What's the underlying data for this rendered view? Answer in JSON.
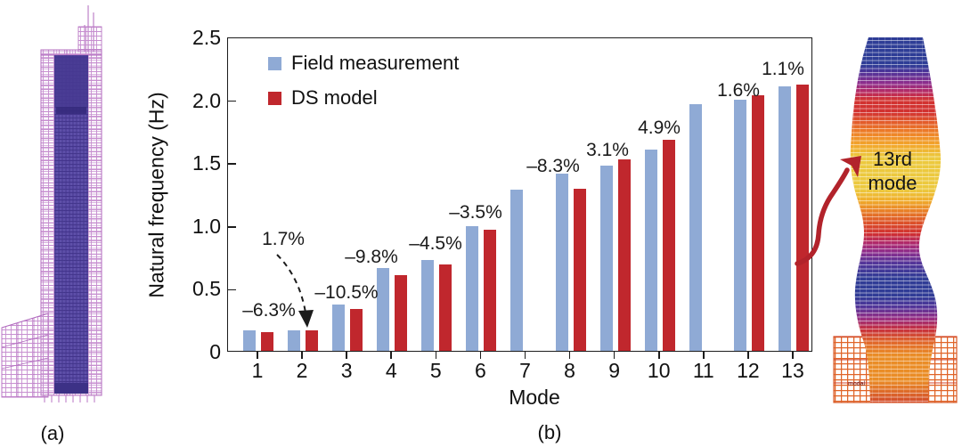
{
  "figure": {
    "panel_a_label": "(a)",
    "panel_b_label": "(b)"
  },
  "chart_data": {
    "type": "bar",
    "title": "",
    "xlabel": "Mode",
    "ylabel": "Natural frequency (Hz)",
    "ylim": [
      0,
      2.5
    ],
    "ytick_labels": [
      "0",
      "0.5",
      "1.0",
      "1.5",
      "2.0",
      "2.5"
    ],
    "categories": [
      "1",
      "2",
      "3",
      "4",
      "5",
      "6",
      "7",
      "8",
      "9",
      "10",
      "11",
      "12",
      "13"
    ],
    "series": [
      {
        "name": "Field measurement",
        "color": "#8faad5",
        "values": [
          0.16,
          0.16,
          0.37,
          0.66,
          0.72,
          0.99,
          1.28,
          1.41,
          1.47,
          1.6,
          1.96,
          2.0,
          2.1
        ]
      },
      {
        "name": "DS model",
        "color": "#c0272d",
        "values": [
          0.15,
          0.165,
          0.33,
          0.6,
          0.69,
          0.96,
          null,
          1.29,
          1.52,
          1.68,
          null,
          2.03,
          2.12
        ]
      }
    ],
    "annotations": [
      {
        "mode": 1,
        "label": "–6.3%"
      },
      {
        "mode": 2,
        "label": "1.7%",
        "arrow": "dashed"
      },
      {
        "mode": 3,
        "label": "–10.5%"
      },
      {
        "mode": 4,
        "label": "–9.8%"
      },
      {
        "mode": 5,
        "label": "–4.5%"
      },
      {
        "mode": 6,
        "label": "–3.5%"
      },
      {
        "mode": 8,
        "label": "–8.3%"
      },
      {
        "mode": 9,
        "label": "3.1%"
      },
      {
        "mode": 10,
        "label": "4.9%"
      },
      {
        "mode": 12,
        "label": "1.6%"
      },
      {
        "mode": 13,
        "label": "1.1%"
      }
    ],
    "legend_position": "top-left",
    "grid": false
  },
  "mode_shape": {
    "label_line1": "13rd",
    "label_line2": "mode",
    "tiny_label": "modal"
  }
}
